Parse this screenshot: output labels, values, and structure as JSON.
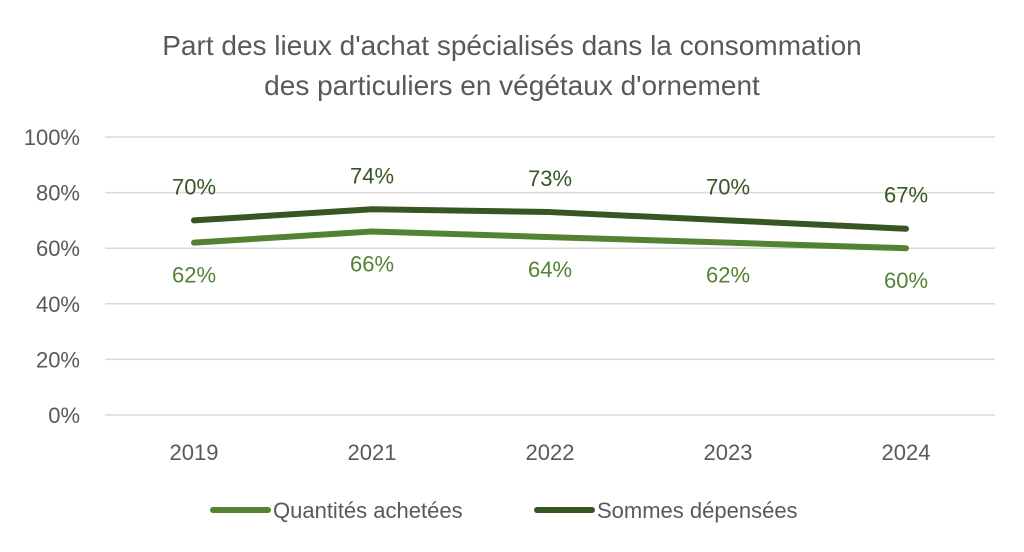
{
  "chart_data": {
    "type": "line",
    "title_lines": [
      "Part des lieux d'achat spécialisés dans la consommation",
      "des particuliers en végétaux d'ornement"
    ],
    "categories": [
      "2019",
      "2021",
      "2022",
      "2023",
      "2024"
    ],
    "ylim": [
      0,
      100
    ],
    "yticks": [
      "0%",
      "20%",
      "40%",
      "60%",
      "80%",
      "100%"
    ],
    "grid": true,
    "legend_position": "bottom",
    "series": [
      {
        "name": "Quantités achetées",
        "values": [
          62,
          66,
          64,
          62,
          60
        ],
        "labels": [
          "62%",
          "66%",
          "64%",
          "62%",
          "60%"
        ],
        "color": "#548235",
        "label_position": "below"
      },
      {
        "name": "Sommes dépensées",
        "values": [
          70,
          74,
          73,
          70,
          67
        ],
        "labels": [
          "70%",
          "74%",
          "73%",
          "70%",
          "67%"
        ],
        "color": "#375623",
        "label_position": "above"
      }
    ]
  }
}
